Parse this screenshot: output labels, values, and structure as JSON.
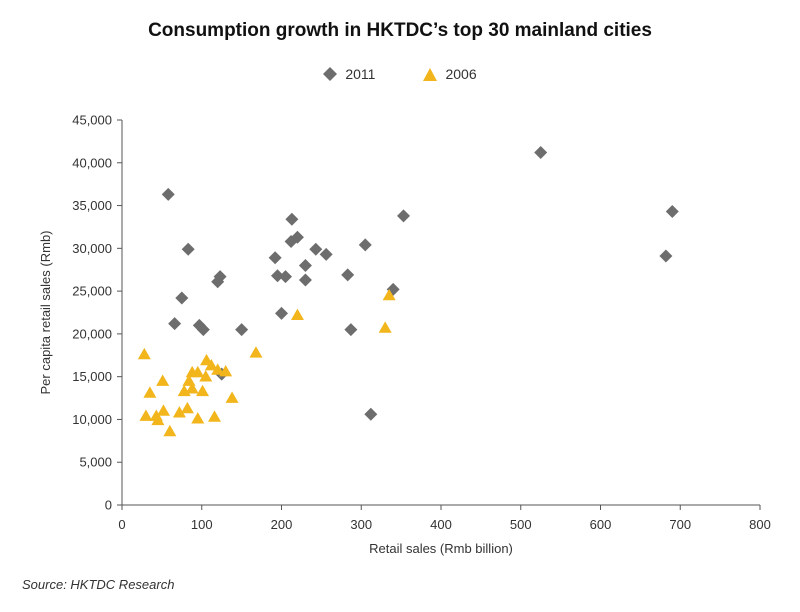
{
  "chart_data": {
    "type": "scatter",
    "title": "Consumption growth in HKTDC’s top 30 mainland cities",
    "xlabel": "Retail sales (Rmb billion)",
    "ylabel": "Per capita retail sales (Rmb)",
    "xlim": [
      0,
      800
    ],
    "ylim": [
      0,
      45000
    ],
    "xticks": [
      0,
      100,
      200,
      300,
      400,
      500,
      600,
      700,
      800
    ],
    "yticks": [
      0,
      5000,
      10000,
      15000,
      20000,
      25000,
      30000,
      35000,
      40000,
      45000
    ],
    "xtick_labels": [
      "0",
      "100",
      "200",
      "300",
      "400",
      "500",
      "600",
      "700",
      "800"
    ],
    "ytick_labels": [
      "0",
      "5,000",
      "10,000",
      "15,000",
      "20,000",
      "25,000",
      "30,000",
      "35,000",
      "40,000",
      "45,000"
    ],
    "grid": false,
    "legend_position": "top-center",
    "series": [
      {
        "name": "2011",
        "marker": "diamond",
        "color": "#6d6d6d",
        "points": [
          [
            58,
            36300
          ],
          [
            75,
            24200
          ],
          [
            66,
            21200
          ],
          [
            83,
            29900
          ],
          [
            97,
            21000
          ],
          [
            102,
            20500
          ],
          [
            120,
            26100
          ],
          [
            123,
            26700
          ],
          [
            125,
            15300
          ],
          [
            150,
            20500
          ],
          [
            192,
            28900
          ],
          [
            195,
            26800
          ],
          [
            200,
            22400
          ],
          [
            205,
            26700
          ],
          [
            212,
            30800
          ],
          [
            213,
            33400
          ],
          [
            220,
            31300
          ],
          [
            230,
            28000
          ],
          [
            230,
            26300
          ],
          [
            243,
            29900
          ],
          [
            256,
            29300
          ],
          [
            283,
            26900
          ],
          [
            287,
            20500
          ],
          [
            305,
            30400
          ],
          [
            312,
            10600
          ],
          [
            340,
            25200
          ],
          [
            353,
            33800
          ],
          [
            525,
            41200
          ],
          [
            682,
            29100
          ],
          [
            690,
            34300
          ]
        ]
      },
      {
        "name": "2006",
        "marker": "triangle",
        "color": "#f2b61c",
        "points": [
          [
            28,
            17600
          ],
          [
            30,
            10400
          ],
          [
            35,
            13100
          ],
          [
            43,
            10400
          ],
          [
            45,
            9900
          ],
          [
            51,
            14500
          ],
          [
            52,
            11000
          ],
          [
            60,
            8600
          ],
          [
            72,
            10800
          ],
          [
            78,
            13300
          ],
          [
            82,
            11300
          ],
          [
            84,
            14500
          ],
          [
            88,
            13600
          ],
          [
            88,
            15500
          ],
          [
            95,
            10100
          ],
          [
            95,
            15500
          ],
          [
            101,
            13300
          ],
          [
            105,
            15000
          ],
          [
            106,
            16900
          ],
          [
            112,
            16300
          ],
          [
            116,
            10300
          ],
          [
            120,
            15800
          ],
          [
            130,
            15600
          ],
          [
            138,
            12500
          ],
          [
            168,
            17800
          ],
          [
            220,
            22200
          ],
          [
            330,
            20700
          ],
          [
            335,
            24500
          ]
        ]
      }
    ]
  },
  "source_note": "Source: HKTDC Research"
}
